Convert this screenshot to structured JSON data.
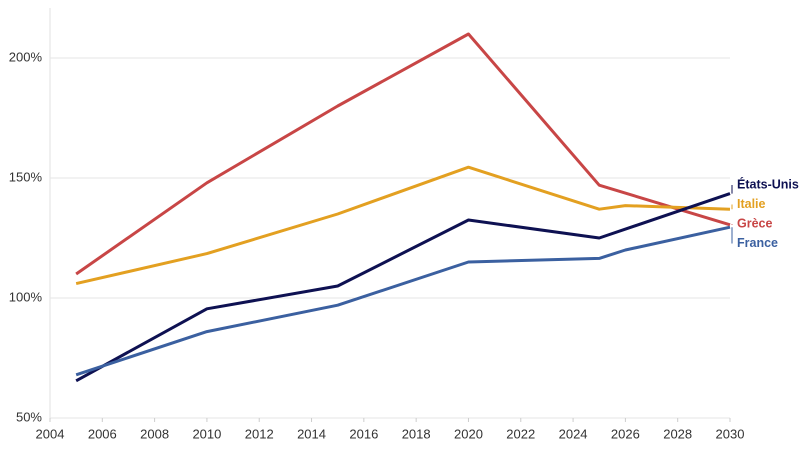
{
  "chart_data": {
    "type": "line",
    "xlim": [
      2004,
      2030
    ],
    "xticks": [
      2004,
      2006,
      2008,
      2010,
      2012,
      2014,
      2016,
      2018,
      2020,
      2022,
      2024,
      2026,
      2028,
      2030
    ],
    "ylim": [
      50,
      220
    ],
    "yticks": [
      {
        "value": 50,
        "label": "50%"
      },
      {
        "value": 100,
        "label": "100%"
      },
      {
        "value": 150,
        "label": "150%"
      },
      {
        "value": 200,
        "label": "200%"
      }
    ],
    "grid": true,
    "series": [
      {
        "name": "États-Unis",
        "color": "#0e1152",
        "x": [
          2005,
          2010,
          2015,
          2020,
          2025,
          2030
        ],
        "values": [
          65.5,
          95.5,
          105,
          132.5,
          125,
          143.5
        ]
      },
      {
        "name": "Italie",
        "color": "#e3a021",
        "x": [
          2005,
          2010,
          2015,
          2020,
          2025,
          2026,
          2030
        ],
        "values": [
          106,
          118.5,
          135,
          154.5,
          137,
          138.5,
          137
        ]
      },
      {
        "name": "Grèce",
        "color": "#c84646",
        "x": [
          2005,
          2010,
          2015,
          2020,
          2025,
          2030
        ],
        "values": [
          110,
          148,
          180,
          210,
          147,
          130.5
        ]
      },
      {
        "name": "France",
        "color": "#3b60a0",
        "x": [
          2005,
          2010,
          2015,
          2020,
          2025,
          2026,
          2030
        ],
        "values": [
          68,
          86,
          97,
          115,
          116.5,
          120,
          129.5
        ]
      }
    ]
  }
}
